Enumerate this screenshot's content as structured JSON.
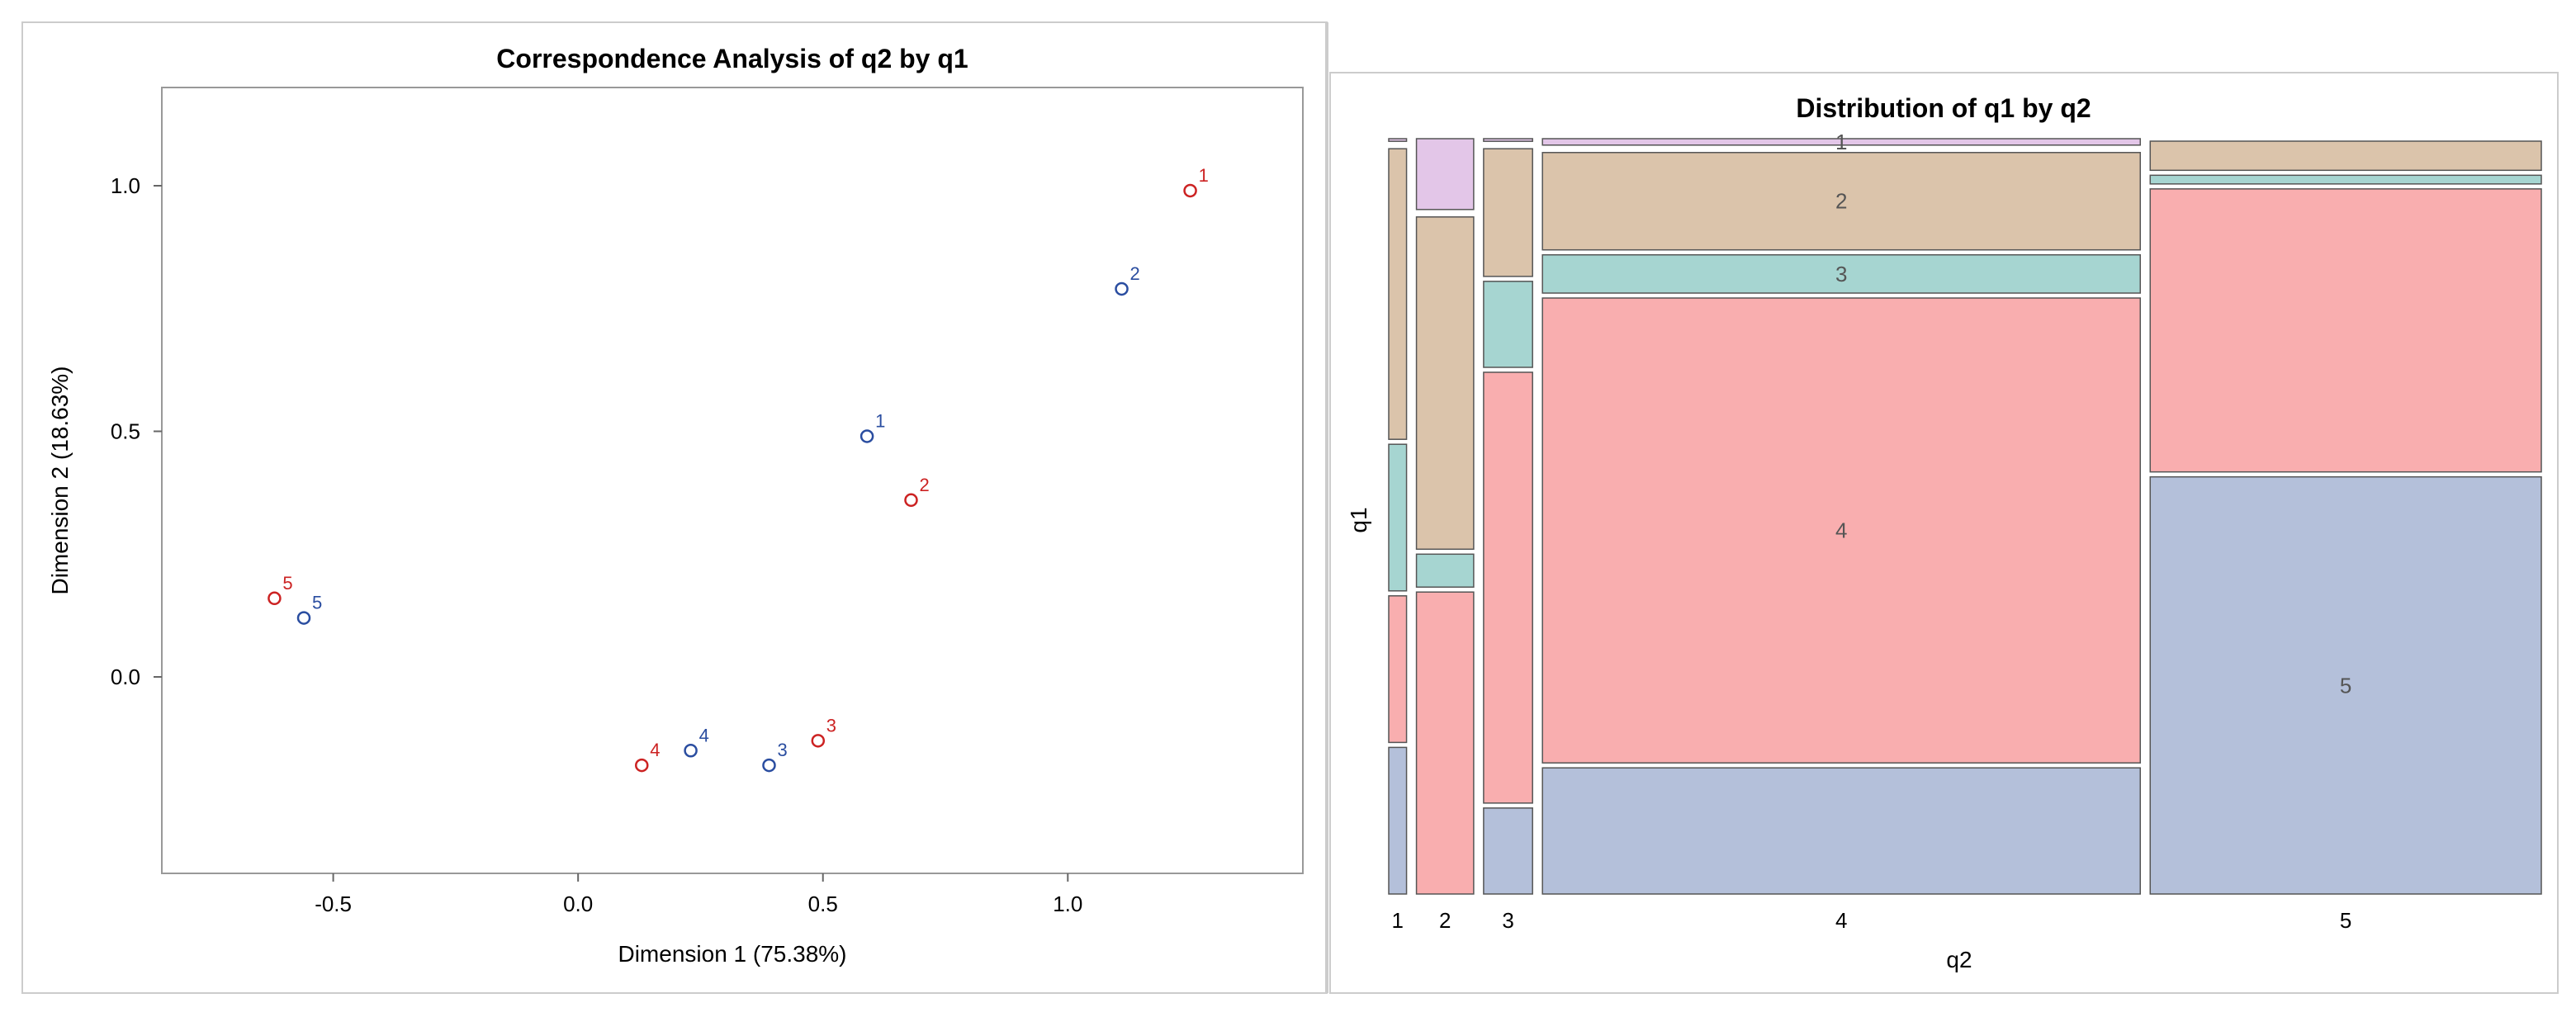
{
  "chart_data": [
    {
      "type": "scatter",
      "title": "Correspondence Analysis of q2 by q1",
      "xlabel": "Dimension 1 (75.38%)",
      "ylabel": "Dimension 2 (18.63%)",
      "xlim": [
        -0.85,
        1.48
      ],
      "ylim": [
        -0.4,
        1.2
      ],
      "xticks": [
        -0.5,
        0.0,
        0.5,
        1.0
      ],
      "xtick_labels": [
        "-0.5",
        "0.0",
        "0.5",
        "1.0"
      ],
      "yticks": [
        0.0,
        0.5,
        1.0
      ],
      "ytick_labels": [
        "0.0",
        "0.5",
        "1.0"
      ],
      "grid": false,
      "series": [
        {
          "name": "q1",
          "color": "#cc2222",
          "points": [
            {
              "label": "1",
              "x": 1.25,
              "y": 0.99
            },
            {
              "label": "2",
              "x": 0.68,
              "y": 0.36
            },
            {
              "label": "3",
              "x": 0.49,
              "y": -0.13
            },
            {
              "label": "4",
              "x": 0.13,
              "y": -0.18
            },
            {
              "label": "5",
              "x": -0.62,
              "y": 0.16
            }
          ]
        },
        {
          "name": "q2",
          "color": "#2a4da0",
          "points": [
            {
              "label": "1",
              "x": 0.59,
              "y": 0.49
            },
            {
              "label": "2",
              "x": 1.11,
              "y": 0.79
            },
            {
              "label": "3",
              "x": 0.39,
              "y": -0.18
            },
            {
              "label": "4",
              "x": 0.23,
              "y": -0.15
            },
            {
              "label": "5",
              "x": -0.56,
              "y": 0.12
            }
          ]
        }
      ]
    },
    {
      "type": "mosaic",
      "title": "Distribution of q1 by q2",
      "xlabel": "q2",
      "ylabel": "q1",
      "categories": [
        "1",
        "2",
        "3",
        "4",
        "5"
      ],
      "column_shares": [
        0.028,
        0.09,
        0.077,
        0.94,
        0.615
      ],
      "segment_order_top_to_bottom": [
        "1",
        "2",
        "3",
        "4",
        "5"
      ],
      "segment_colors": {
        "1": "#e3c6e8",
        "2": "#dbc4ab",
        "3": "#a6d5d1",
        "4": "#f9aeaf",
        "5": "#b4c0da"
      },
      "columns": [
        {
          "q2": "1",
          "shares": [
            0.01,
            0.39,
            0.2,
            0.2,
            0.2
          ]
        },
        {
          "q2": "2",
          "shares": [
            0.1,
            0.445,
            0.05,
            0.405,
            0.0
          ]
        },
        {
          "q2": "3",
          "shares": [
            0.01,
            0.175,
            0.12,
            0.575,
            0.12
          ]
        },
        {
          "q2": "4",
          "shares": [
            0.015,
            0.135,
            0.057,
            0.62,
            0.173
          ]
        },
        {
          "q2": "5",
          "shares": [
            0.0,
            0.045,
            0.018,
            0.38,
            0.557
          ]
        }
      ],
      "cell_labels": [
        {
          "q2": "4",
          "q1": "1",
          "text": "1"
        },
        {
          "q2": "4",
          "q1": "2",
          "text": "2"
        },
        {
          "q2": "4",
          "q1": "3",
          "text": "3"
        },
        {
          "q2": "4",
          "q1": "4",
          "text": "4"
        },
        {
          "q2": "5",
          "q1": "5",
          "text": "5"
        }
      ]
    }
  ]
}
